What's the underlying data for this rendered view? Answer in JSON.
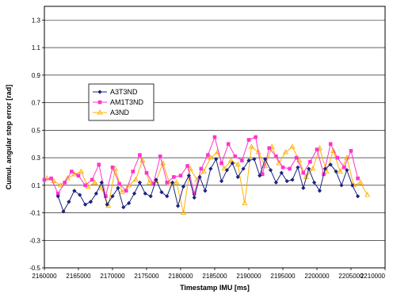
{
  "chart_data": {
    "type": "line",
    "xlabel": "Timestamp IMU [ms]",
    "ylabel": "Cumul. angular step error [rad]",
    "xlim": [
      2160000,
      2210000
    ],
    "ylim": [
      -0.5,
      1.4
    ],
    "xticks": [
      2160000,
      2165000,
      2170000,
      2175000,
      2180000,
      2185000,
      2190000,
      2195000,
      2200000,
      2205000,
      2210000
    ],
    "yticks": [
      -0.5,
      -0.3,
      -0.1,
      0.1,
      0.3,
      0.5,
      0.7,
      0.9,
      1.1,
      1.3
    ],
    "grid": "horizontal",
    "legend_position": "upper-left",
    "series": [
      {
        "name": "A3T3ND",
        "color": "#1a237e",
        "marker": "diamond",
        "x": [
          2162000,
          2162800,
          2163600,
          2164400,
          2165200,
          2166000,
          2166800,
          2167600,
          2168400,
          2169200,
          2170000,
          2170800,
          2171600,
          2172400,
          2173200,
          2174000,
          2174800,
          2175600,
          2176400,
          2177200,
          2178000,
          2178800,
          2179600,
          2180400,
          2181200,
          2182000,
          2182800,
          2183600,
          2184400,
          2185200,
          2186000,
          2186800,
          2187600,
          2188400,
          2189200,
          2190000,
          2190800,
          2191600,
          2192400,
          2193200,
          2194000,
          2194800,
          2195600,
          2196400,
          2197200,
          2198000,
          2198800,
          2199600,
          2200400,
          2201200,
          2202000,
          2202800,
          2203600,
          2204400,
          2205200,
          2206000
        ],
        "values": [
          0.02,
          -0.09,
          -0.02,
          0.06,
          0.03,
          -0.04,
          -0.02,
          0.04,
          0.12,
          -0.04,
          0.02,
          0.08,
          -0.06,
          -0.03,
          0.04,
          0.12,
          0.04,
          0.02,
          0.14,
          0.05,
          0.02,
          0.12,
          -0.05,
          0.09,
          0.17,
          0.01,
          0.16,
          0.06,
          0.22,
          0.29,
          0.13,
          0.21,
          0.26,
          0.16,
          0.22,
          0.28,
          0.29,
          0.17,
          0.29,
          0.21,
          0.12,
          0.19,
          0.13,
          0.14,
          0.23,
          0.08,
          0.22,
          0.12,
          0.06,
          0.22,
          0.25,
          0.2,
          0.1,
          0.21,
          0.1,
          0.02
        ]
      },
      {
        "name": "AM1T3ND",
        "color": "#ff33cc",
        "marker": "square",
        "x": [
          2160000,
          2161000,
          2162000,
          2163000,
          2164000,
          2165000,
          2166000,
          2167000,
          2168000,
          2169000,
          2170000,
          2171000,
          2172000,
          2173000,
          2174000,
          2175000,
          2176000,
          2177000,
          2178000,
          2179000,
          2180000,
          2181000,
          2182000,
          2183000,
          2184000,
          2185000,
          2186000,
          2187000,
          2188000,
          2189000,
          2190000,
          2191000,
          2192000,
          2193000,
          2194000,
          2195000,
          2196000,
          2197000,
          2198000,
          2199000,
          2200000,
          2201000,
          2202000,
          2203000,
          2204000,
          2205000,
          2206000
        ],
        "values": [
          0.14,
          0.15,
          0.04,
          0.12,
          0.2,
          0.17,
          0.1,
          0.14,
          0.25,
          0.02,
          0.23,
          0.11,
          0.06,
          0.2,
          0.32,
          0.19,
          0.11,
          0.31,
          0.12,
          0.16,
          0.17,
          0.24,
          0.04,
          0.22,
          0.32,
          0.45,
          0.26,
          0.4,
          0.31,
          0.28,
          0.43,
          0.45,
          0.18,
          0.37,
          0.31,
          0.23,
          0.22,
          0.3,
          0.19,
          0.27,
          0.36,
          0.18,
          0.4,
          0.3,
          0.23,
          0.35,
          0.15
        ]
      },
      {
        "name": "A3ND",
        "color": "#ffb300",
        "marker": "triangle",
        "x": [
          2160400,
          2161400,
          2162400,
          2163400,
          2164400,
          2165400,
          2166400,
          2167400,
          2168400,
          2169400,
          2170400,
          2171400,
          2172400,
          2173400,
          2174400,
          2175400,
          2176400,
          2177400,
          2178400,
          2179400,
          2180400,
          2181400,
          2182400,
          2183400,
          2184400,
          2185400,
          2186400,
          2187400,
          2188400,
          2189400,
          2190400,
          2191400,
          2192400,
          2193400,
          2194400,
          2195400,
          2196400,
          2197400,
          2198400,
          2199400,
          2200400,
          2201400,
          2202400,
          2203400,
          2204400,
          2205400,
          2206400,
          2207400
        ],
        "values": [
          0.15,
          0.13,
          0.1,
          0.15,
          0.18,
          0.2,
          0.09,
          0.12,
          0.08,
          -0.05,
          0.22,
          0.05,
          0.1,
          0.14,
          0.28,
          0.12,
          0.13,
          0.26,
          0.11,
          0.12,
          -0.1,
          0.22,
          0.14,
          0.2,
          0.3,
          0.34,
          0.22,
          0.28,
          0.25,
          -0.03,
          0.38,
          0.34,
          0.24,
          0.38,
          0.26,
          0.34,
          0.38,
          0.28,
          0.16,
          0.22,
          0.37,
          0.2,
          0.35,
          0.2,
          0.3,
          0.1,
          0.12,
          0.03
        ]
      }
    ]
  }
}
